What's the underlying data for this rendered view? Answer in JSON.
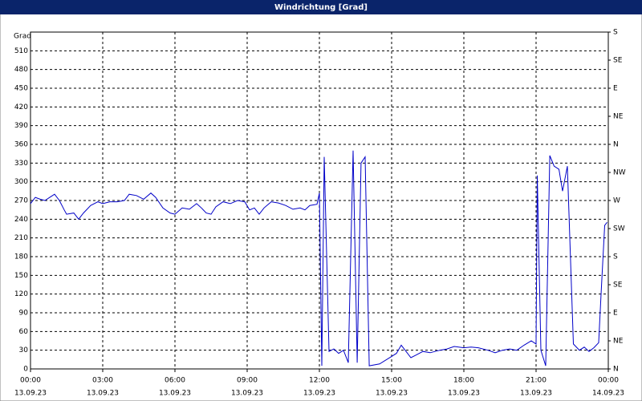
{
  "chart_data": {
    "type": "line",
    "title": "Windrichtung [Grad]",
    "y_label": "Grad",
    "x": [
      0,
      0.2,
      0.4,
      0.6,
      0.8,
      1.0,
      1.2,
      1.4,
      1.5,
      1.8,
      2.0,
      2.2,
      2.5,
      2.8,
      3.0,
      3.3,
      3.6,
      3.9,
      4.1,
      4.4,
      4.7,
      5.0,
      5.2,
      5.5,
      5.8,
      6.0,
      6.3,
      6.6,
      6.9,
      7.1,
      7.3,
      7.5,
      7.7,
      8.0,
      8.3,
      8.6,
      8.9,
      9.1,
      9.3,
      9.5,
      9.7,
      10.0,
      10.3,
      10.6,
      10.9,
      11.2,
      11.4,
      11.6,
      11.9,
      12.0,
      12.1,
      12.2,
      12.4,
      12.6,
      12.8,
      13.0,
      13.2,
      13.4,
      13.57,
      13.73,
      13.9,
      14.07,
      14.5,
      15.0,
      15.2,
      15.4,
      15.6,
      15.8,
      16.0,
      16.3,
      16.6,
      17.0,
      17.3,
      17.6,
      18.0,
      18.3,
      18.6,
      19.0,
      19.3,
      19.6,
      19.9,
      20.2,
      20.5,
      20.8,
      21.0,
      21.05,
      21.2,
      21.4,
      21.57,
      21.75,
      21.95,
      22.1,
      22.3,
      22.55,
      22.8,
      23.0,
      23.2,
      23.4,
      23.6,
      23.7,
      23.85,
      23.95
    ],
    "series": [
      {
        "color": "#0000c8",
        "values": [
          265,
          275,
          272,
          270,
          275,
          280,
          270,
          255,
          248,
          250,
          240,
          250,
          262,
          268,
          265,
          268,
          268,
          270,
          280,
          278,
          272,
          282,
          275,
          258,
          250,
          248,
          258,
          256,
          265,
          258,
          250,
          248,
          260,
          268,
          265,
          270,
          268,
          255,
          258,
          248,
          258,
          268,
          266,
          262,
          256,
          258,
          255,
          262,
          264,
          282,
          5,
          340,
          28,
          32,
          25,
          30,
          10,
          350,
          10,
          330,
          340,
          5,
          8,
          20,
          25,
          38,
          28,
          18,
          22,
          28,
          26,
          30,
          32,
          36,
          34,
          35,
          34,
          30,
          26,
          30,
          32,
          30,
          38,
          45,
          40,
          310,
          30,
          5,
          342,
          325,
          320,
          285,
          325,
          40,
          30,
          35,
          28,
          34,
          42,
          120,
          230,
          235
        ]
      }
    ],
    "xlim": [
      0,
      24
    ],
    "ylim": [
      0,
      540
    ],
    "y2lim": [
      0,
      540
    ],
    "xticks": [
      {
        "value": 0,
        "label": "00:00"
      },
      {
        "value": 3,
        "label": "03:00"
      },
      {
        "value": 6,
        "label": "06:00"
      },
      {
        "value": 9,
        "label": "09:00"
      },
      {
        "value": 12,
        "label": "12:00"
      },
      {
        "value": 15,
        "label": "15:00"
      },
      {
        "value": 18,
        "label": "18:00"
      },
      {
        "value": 21,
        "label": "21:00"
      },
      {
        "value": 24,
        "label": "00:00"
      }
    ],
    "xtick_dates": [
      "13.09.23",
      "13.09.23",
      "13.09.23",
      "13.09.23",
      "13.09.23",
      "13.09.23",
      "13.09.23",
      "13.09.23",
      "14.09.23"
    ],
    "yticks": [
      0,
      30,
      60,
      90,
      120,
      150,
      180,
      210,
      240,
      270,
      300,
      330,
      360,
      390,
      420,
      450,
      480,
      510
    ],
    "y2ticks": [
      {
        "value": 0,
        "label": "N"
      },
      {
        "value": 45,
        "label": "NE"
      },
      {
        "value": 90,
        "label": "E"
      },
      {
        "value": 135,
        "label": "SE"
      },
      {
        "value": 180,
        "label": "S"
      },
      {
        "value": 225,
        "label": "SW"
      },
      {
        "value": 270,
        "label": "W"
      },
      {
        "value": 315,
        "label": "NW"
      },
      {
        "value": 360,
        "label": "N"
      },
      {
        "value": 405,
        "label": "NE"
      },
      {
        "value": 450,
        "label": "E"
      },
      {
        "value": 495,
        "label": "SE"
      },
      {
        "value": 540,
        "label": "S"
      }
    ],
    "grid": true
  }
}
